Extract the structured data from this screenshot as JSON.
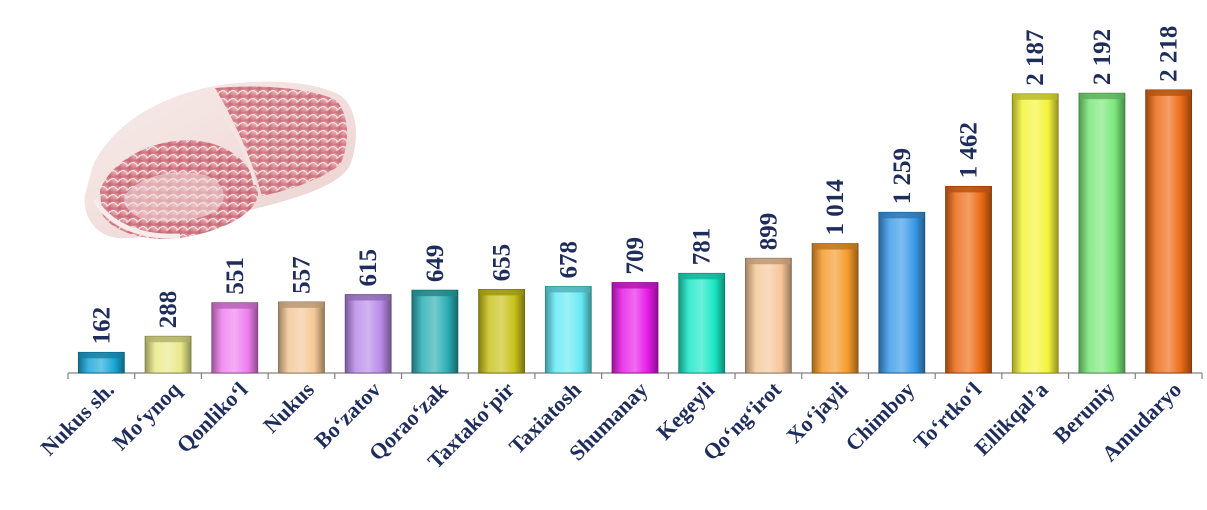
{
  "chart_data": {
    "type": "bar",
    "categories": [
      "Nukus sh.",
      "Mo‘ynoq",
      "Qonliko‘l",
      "Nukus",
      "Bo‘zatov",
      "Qorao‘zak",
      "Taxtako‘pir",
      "Taxiatosh",
      "Shumanay",
      "Kegeyli",
      "Qo‘ng‘irot",
      "Xo‘jayli",
      "Chimboy",
      "To‘rtko‘l",
      "Ellikqal’a",
      "Beruniy",
      "Amudaryo"
    ],
    "values": [
      162,
      288,
      551,
      557,
      615,
      649,
      655,
      678,
      709,
      781,
      899,
      1014,
      1259,
      1462,
      2187,
      2192,
      2218
    ],
    "value_labels": [
      "162",
      "288",
      "551",
      "557",
      "615",
      "649",
      "655",
      "678",
      "709",
      "781",
      "899",
      "1 014",
      "1 259",
      "1 462",
      "2 187",
      "2 192",
      "2 218"
    ],
    "colors": [
      "#1aa7d8",
      "#e9e98a",
      "#ef7fef",
      "#f4c898",
      "#b98ae8",
      "#2aaeb3",
      "#c9c21a",
      "#66eaf4",
      "#e81ae8",
      "#1ae8c6",
      "#f6c79a",
      "#f59a2a",
      "#3a9ae8",
      "#ec6a14",
      "#f4f43a",
      "#7ae87a",
      "#ec6a14"
    ],
    "title": "",
    "xlabel": "",
    "ylabel": "",
    "ylim": [
      0,
      2350
    ],
    "grid": false,
    "legend": "none"
  },
  "decor": {
    "image_icon": "raw-beef-rib-photo-icon"
  }
}
